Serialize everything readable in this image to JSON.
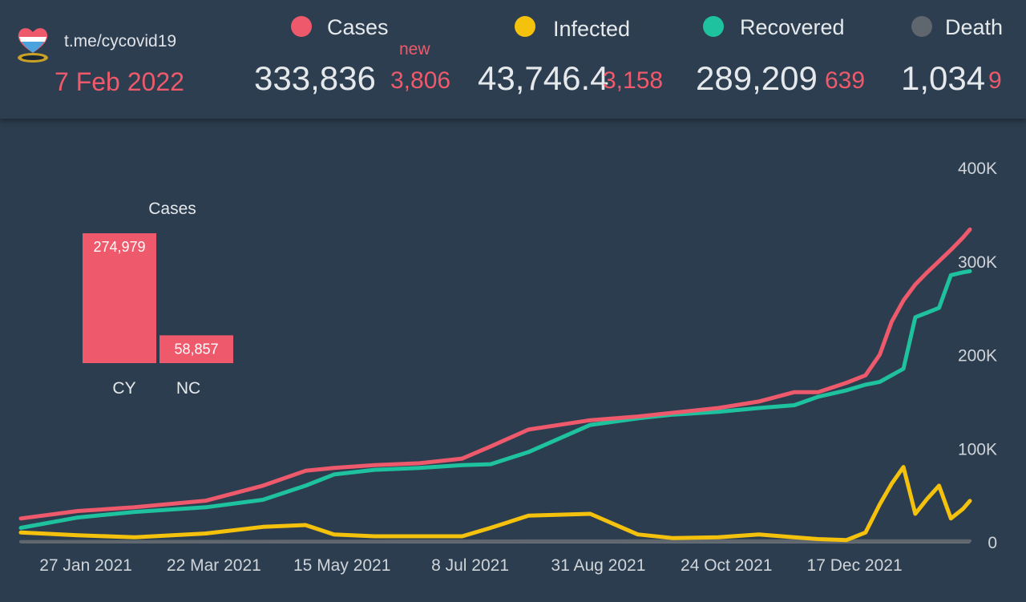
{
  "header": {
    "channel": "t.me/cycovid19",
    "date": "7 Feb 2022",
    "new_label": "new",
    "logo_icon": "cyprus-heart-logo-icon"
  },
  "stats": [
    {
      "key": "cases",
      "label": "Cases",
      "total": "333,836",
      "delta": "3,806",
      "color": "#ee5a6b"
    },
    {
      "key": "infected",
      "label": "Infected",
      "total": "43,746.4",
      "delta": "3,158",
      "color": "#f4c20d"
    },
    {
      "key": "recovered",
      "label": "Recovered",
      "total": "289,209",
      "delta": "639",
      "color": "#1ec29e"
    },
    {
      "key": "death",
      "label": "Death",
      "total": "1,034",
      "delta": "9",
      "color": "#5f666e"
    }
  ],
  "chart_data": [
    {
      "type": "line",
      "x_ticks": [
        "27 Jan 2021",
        "22 Mar 2021",
        "15 May 2021",
        "8 Jul 2021",
        "31 Aug 2021",
        "24 Oct 2021",
        "17 Dec 2021"
      ],
      "y_ticks": [
        "0",
        "100K",
        "200K",
        "300K",
        "400K"
      ],
      "ylim": [
        0,
        400000
      ],
      "grid": false,
      "x": [
        "2021-01-03",
        "2021-01-27",
        "2021-02-20",
        "2021-03-22",
        "2021-04-15",
        "2021-05-03",
        "2021-05-15",
        "2021-06-01",
        "2021-06-20",
        "2021-07-08",
        "2021-07-20",
        "2021-08-05",
        "2021-08-31",
        "2021-09-20",
        "2021-10-05",
        "2021-10-24",
        "2021-11-10",
        "2021-11-25",
        "2021-12-05",
        "2021-12-17",
        "2021-12-25",
        "2021-12-31",
        "2022-01-05",
        "2022-01-10",
        "2022-01-15",
        "2022-01-20",
        "2022-01-25",
        "2022-01-30",
        "2022-02-04",
        "2022-02-07"
      ],
      "series": [
        {
          "name": "Cases",
          "color": "#ee5a6b",
          "values": [
            25000,
            33000,
            37000,
            44000,
            60000,
            76000,
            79000,
            82000,
            84000,
            89000,
            102000,
            120000,
            130000,
            134000,
            138000,
            143000,
            150000,
            160000,
            160000,
            170000,
            178000,
            200000,
            235000,
            258000,
            275000,
            288000,
            300000,
            312000,
            325000,
            333836
          ]
        },
        {
          "name": "Recovered",
          "color": "#1ec29e",
          "values": [
            15000,
            26000,
            32000,
            37000,
            45000,
            60000,
            72000,
            77000,
            79000,
            82000,
            83000,
            96000,
            125000,
            132000,
            136000,
            139000,
            143000,
            146000,
            155000,
            162000,
            168000,
            171000,
            178000,
            185000,
            240000,
            245000,
            250000,
            285000,
            288000,
            289209
          ]
        },
        {
          "name": "Infected",
          "color": "#f4c20d",
          "values": [
            10000,
            7000,
            5000,
            9000,
            16000,
            18000,
            8000,
            6000,
            6000,
            6000,
            15000,
            28000,
            30000,
            8000,
            4000,
            5000,
            8000,
            5000,
            3000,
            2000,
            10000,
            40000,
            62000,
            80000,
            30000,
            46000,
            60000,
            25000,
            35000,
            43746
          ]
        },
        {
          "name": "Death",
          "color": "#5f666e",
          "values": [
            200,
            300,
            350,
            400,
            500,
            600,
            650,
            700,
            750,
            800,
            850,
            900,
            950,
            1000,
            1000,
            1000,
            1000,
            1000,
            1000,
            1010,
            1015,
            1020,
            1025,
            1028,
            1030,
            1031,
            1032,
            1033,
            1034,
            1034
          ]
        }
      ]
    },
    {
      "type": "bar",
      "title": "Cases",
      "categories": [
        "CY",
        "NC"
      ],
      "values": [
        274979,
        58857
      ],
      "value_labels": [
        "274,979",
        "58,857"
      ],
      "color": "#ee5a6b"
    }
  ]
}
